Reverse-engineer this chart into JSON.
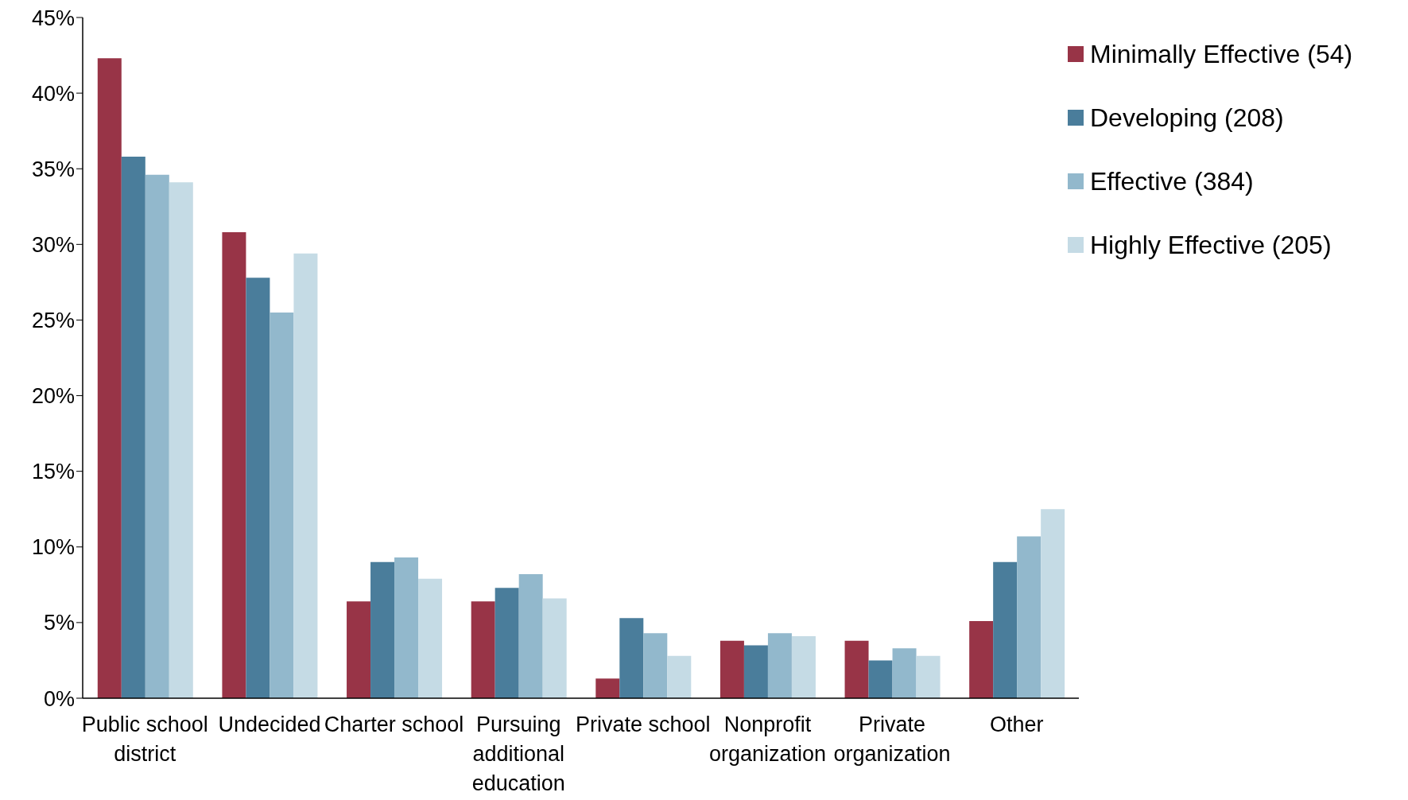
{
  "chart_data": {
    "type": "bar",
    "categories": [
      "Public school district",
      "Undecided",
      "Charter school",
      "Pursuing additional education",
      "Private school",
      "Nonprofit organization",
      "Private organization",
      "Other"
    ],
    "series": [
      {
        "name": "Minimally Effective (54)",
        "color": "#983447",
        "values": [
          42.3,
          30.8,
          6.4,
          6.4,
          1.3,
          3.8,
          3.8,
          5.1
        ]
      },
      {
        "name": "Developing (208)",
        "color": "#4a7d9b",
        "values": [
          35.8,
          27.8,
          9.0,
          7.3,
          5.3,
          3.5,
          2.5,
          9.0
        ]
      },
      {
        "name": "Effective (384)",
        "color": "#92b8cc",
        "values": [
          34.6,
          25.5,
          9.3,
          8.2,
          4.3,
          4.3,
          3.3,
          10.7
        ]
      },
      {
        "name": "Highly Effective (205)",
        "color": "#c5dbe5",
        "values": [
          34.1,
          29.4,
          7.9,
          6.6,
          2.8,
          4.1,
          2.8,
          12.5
        ]
      }
    ],
    "ylim": [
      0,
      45
    ],
    "yticks": [
      {
        "value": 0,
        "label": "0%"
      },
      {
        "value": 5,
        "label": "5%"
      },
      {
        "value": 10,
        "label": "10%"
      },
      {
        "value": 15,
        "label": "15%"
      },
      {
        "value": 20,
        "label": "20%"
      },
      {
        "value": 25,
        "label": "25%"
      },
      {
        "value": 30,
        "label": "30%"
      },
      {
        "value": 35,
        "label": "35%"
      },
      {
        "value": 40,
        "label": "40%"
      },
      {
        "value": 45,
        "label": "45%"
      }
    ],
    "grid": false,
    "legend": "top right"
  }
}
